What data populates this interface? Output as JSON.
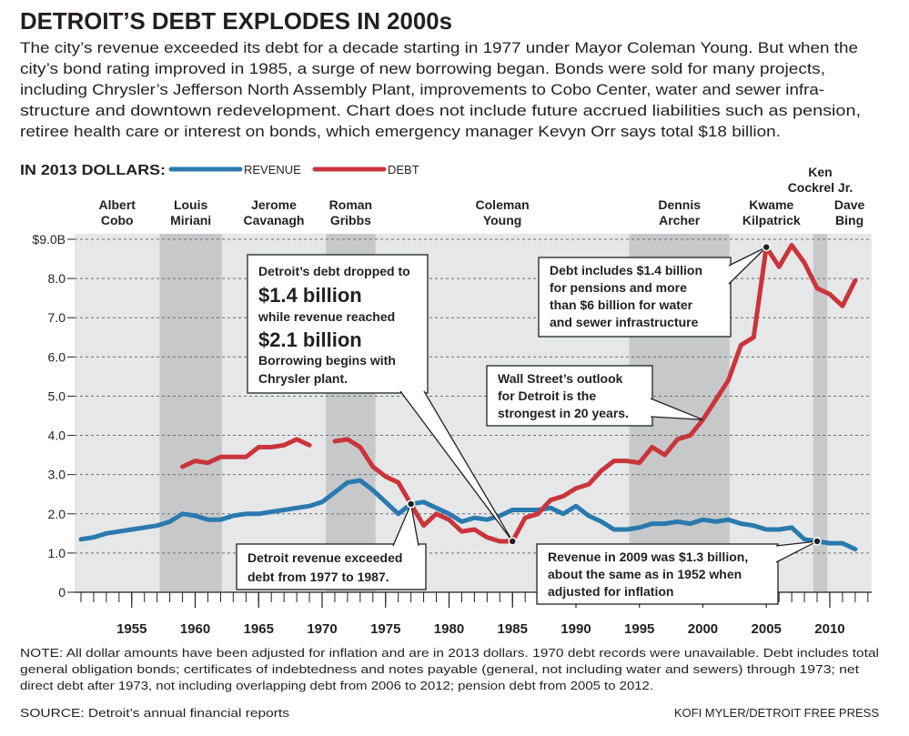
{
  "chart_data": {
    "type": "line",
    "title": "DETROIT’S DEBT EXPLODES IN 2000s",
    "subtitle": [
      "The city’s revenue exceeded its debt for a decade starting in 1977 under Mayor Coleman Young. But when the",
      "city’s bond rating improved in 1985, a surge of new borrowing began. Bonds were sold for many projects,",
      "including Chrysler’s Jefferson North Assembly Plant, improvements to Cobo Center, water and sewer infra-",
      "structure and downtown redevelopment. Chart does not include future accrued liabilities such as pension,",
      "retiree health care or interest on bonds, which emergency manager Kevyn Orr says total $18 billion."
    ],
    "legend_title": "IN 2013 DOLLARS:",
    "x": [
      1951,
      1952,
      1953,
      1954,
      1955,
      1956,
      1957,
      1958,
      1959,
      1960,
      1961,
      1962,
      1963,
      1964,
      1965,
      1966,
      1967,
      1968,
      1969,
      1970,
      1971,
      1972,
      1973,
      1974,
      1975,
      1976,
      1977,
      1978,
      1979,
      1980,
      1981,
      1982,
      1983,
      1984,
      1985,
      1986,
      1987,
      1988,
      1989,
      1990,
      1991,
      1992,
      1993,
      1994,
      1995,
      1996,
      1997,
      1998,
      1999,
      2000,
      2001,
      2002,
      2003,
      2004,
      2005,
      2006,
      2007,
      2008,
      2009,
      2010,
      2011,
      2012
    ],
    "series": [
      {
        "name": "REVENUE",
        "color": "#2a7aae",
        "values": [
          1.35,
          1.4,
          1.5,
          1.55,
          1.6,
          1.65,
          1.7,
          1.8,
          2.0,
          1.95,
          1.85,
          1.85,
          1.95,
          2.0,
          2.0,
          2.05,
          2.1,
          2.15,
          2.2,
          2.3,
          2.55,
          2.8,
          2.85,
          2.6,
          2.3,
          2.0,
          2.25,
          2.3,
          2.15,
          2.0,
          1.8,
          1.9,
          1.85,
          1.95,
          2.1,
          2.1,
          2.1,
          2.15,
          2.0,
          2.2,
          1.95,
          1.8,
          1.6,
          1.6,
          1.65,
          1.75,
          1.75,
          1.8,
          1.75,
          1.85,
          1.8,
          1.85,
          1.75,
          1.7,
          1.6,
          1.6,
          1.65,
          1.35,
          1.3,
          1.25,
          1.25,
          1.1
        ]
      },
      {
        "name": "DEBT",
        "color": "#c9353b",
        "values": [
          null,
          null,
          null,
          null,
          null,
          null,
          null,
          null,
          3.2,
          3.35,
          3.3,
          3.45,
          3.45,
          3.45,
          3.7,
          3.7,
          3.75,
          3.9,
          3.75,
          null,
          3.85,
          3.9,
          3.7,
          3.2,
          2.95,
          2.8,
          2.25,
          1.7,
          2.0,
          1.85,
          1.55,
          1.6,
          1.4,
          1.3,
          1.3,
          1.9,
          2.0,
          2.35,
          2.45,
          2.65,
          2.75,
          3.1,
          3.35,
          3.35,
          3.3,
          3.7,
          3.5,
          3.9,
          4.0,
          4.4,
          4.9,
          5.4,
          6.3,
          6.5,
          8.8,
          8.3,
          8.85,
          8.4,
          7.75,
          7.6,
          7.3,
          7.95
        ]
      }
    ],
    "xlim": [
      1950.5,
      2013.3
    ],
    "xticks": [
      1955,
      1960,
      1965,
      1970,
      1975,
      1980,
      1985,
      1990,
      1995,
      2000,
      2005,
      2010
    ],
    "ylim": [
      0,
      9
    ],
    "yticks": [
      0,
      {
        "value": 1,
        "label": "1.0"
      },
      {
        "value": 2,
        "label": "2.0"
      },
      {
        "value": 3,
        "label": "3.0"
      },
      {
        "value": 4,
        "label": "4.0"
      },
      {
        "value": 5,
        "label": "5.0"
      },
      {
        "value": 6,
        "label": "6.0"
      },
      {
        "value": 7,
        "label": "7.0"
      },
      {
        "value": 8,
        "label": "8.0"
      },
      {
        "value": 9,
        "label": "$9.0B"
      }
    ],
    "grid": true,
    "mayors": [
      {
        "name": [
          "Albert",
          "Cobo"
        ],
        "start": 1950,
        "end": 1957.2
      },
      {
        "name": [
          "Louis",
          "Miriani"
        ],
        "start": 1957.2,
        "end": 1962.1
      },
      {
        "name": [
          "Jerome",
          "Cavanagh"
        ],
        "start": 1962.1,
        "end": 1970.3
      },
      {
        "name": [
          "Roman",
          "Gribbs"
        ],
        "start": 1970.3,
        "end": 1974.2
      },
      {
        "name": [
          "Coleman",
          "Young"
        ],
        "start": 1974.2,
        "end": 1994.2
      },
      {
        "name": [
          "Dennis",
          "Archer"
        ],
        "start": 1994.2,
        "end": 2002.1
      },
      {
        "name": [
          "Kwame",
          "Kilpatrick"
        ],
        "start": 2002.1,
        "end": 2008.7
      },
      {
        "name": [
          "Ken",
          "Cockrel Jr."
        ],
        "start": 2008.7,
        "end": 2009.8
      },
      {
        "name": [
          "Dave",
          "Bing"
        ],
        "start": 2009.8,
        "end": 2014
      }
    ],
    "annotations": [
      {
        "lines": [
          "Detroit’s debt dropped to",
          "$1.4 billion",
          "while revenue reached",
          "$2.1 billion",
          "Borrowing begins with",
          "Chrysler plant."
        ]
      },
      {
        "lines": [
          "Detroit revenue exceeded",
          "debt from 1977 to 1987."
        ]
      },
      {
        "lines": [
          "Debt includes $1.4 billion",
          "for pensions and more",
          "than $6 billion for water",
          "and sewer infrastructure"
        ]
      },
      {
        "lines": [
          "Wall Street’s outlook",
          "for Detroit is the",
          "strongest in 20 years."
        ]
      },
      {
        "lines": [
          "Revenue in 2009 was $1.3 billion,",
          "about the same as in 1952 when",
          "adjusted for inflation"
        ]
      }
    ],
    "note": [
      "NOTE: All dollar amounts have been adjusted for inflation and are in 2013 dollars. 1970 debt records were unavailable. Debt includes total",
      "general obligation bonds; certificates of indebtedness and notes payable (general, not including water and sewers) through 1973; net",
      "direct debt after 1973, not including overlapping debt from 2006 to 2012; pension debt from 2005 to 2012."
    ],
    "source": "SOURCE: Detroit’s annual financial reports",
    "credit": "KOFI MYLER/DETROIT FREE PRESS"
  }
}
